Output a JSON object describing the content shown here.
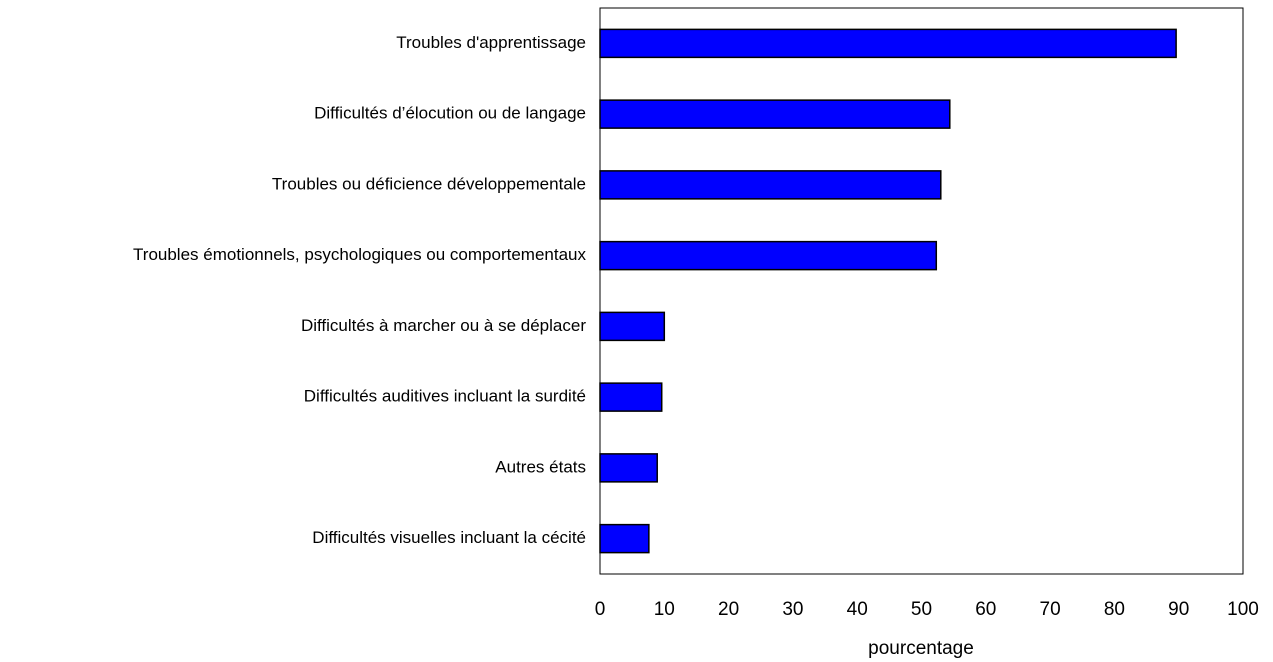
{
  "chart_data": {
    "type": "bar",
    "orientation": "horizontal",
    "x_label": "pourcentage",
    "categories": [
      "Troubles d'apprentissage",
      "Difficultés d’élocution ou de langage",
      "Troubles ou déficience développementale",
      "Troubles émotionnels, psychologiques ou comportementaux",
      "Difficultés à marcher ou à se déplacer",
      "Difficultés auditives incluant la surdité",
      "Autres états",
      "Difficultés visuelles incluant la cécité"
    ],
    "values": [
      89.6,
      54.4,
      53.0,
      52.3,
      10.0,
      9.6,
      8.9,
      7.6
    ],
    "color": "#0000ff",
    "xlim": [
      0,
      100
    ],
    "xticks": [
      0,
      10,
      20,
      30,
      40,
      50,
      60,
      70,
      80,
      90,
      100
    ],
    "grid": false
  }
}
